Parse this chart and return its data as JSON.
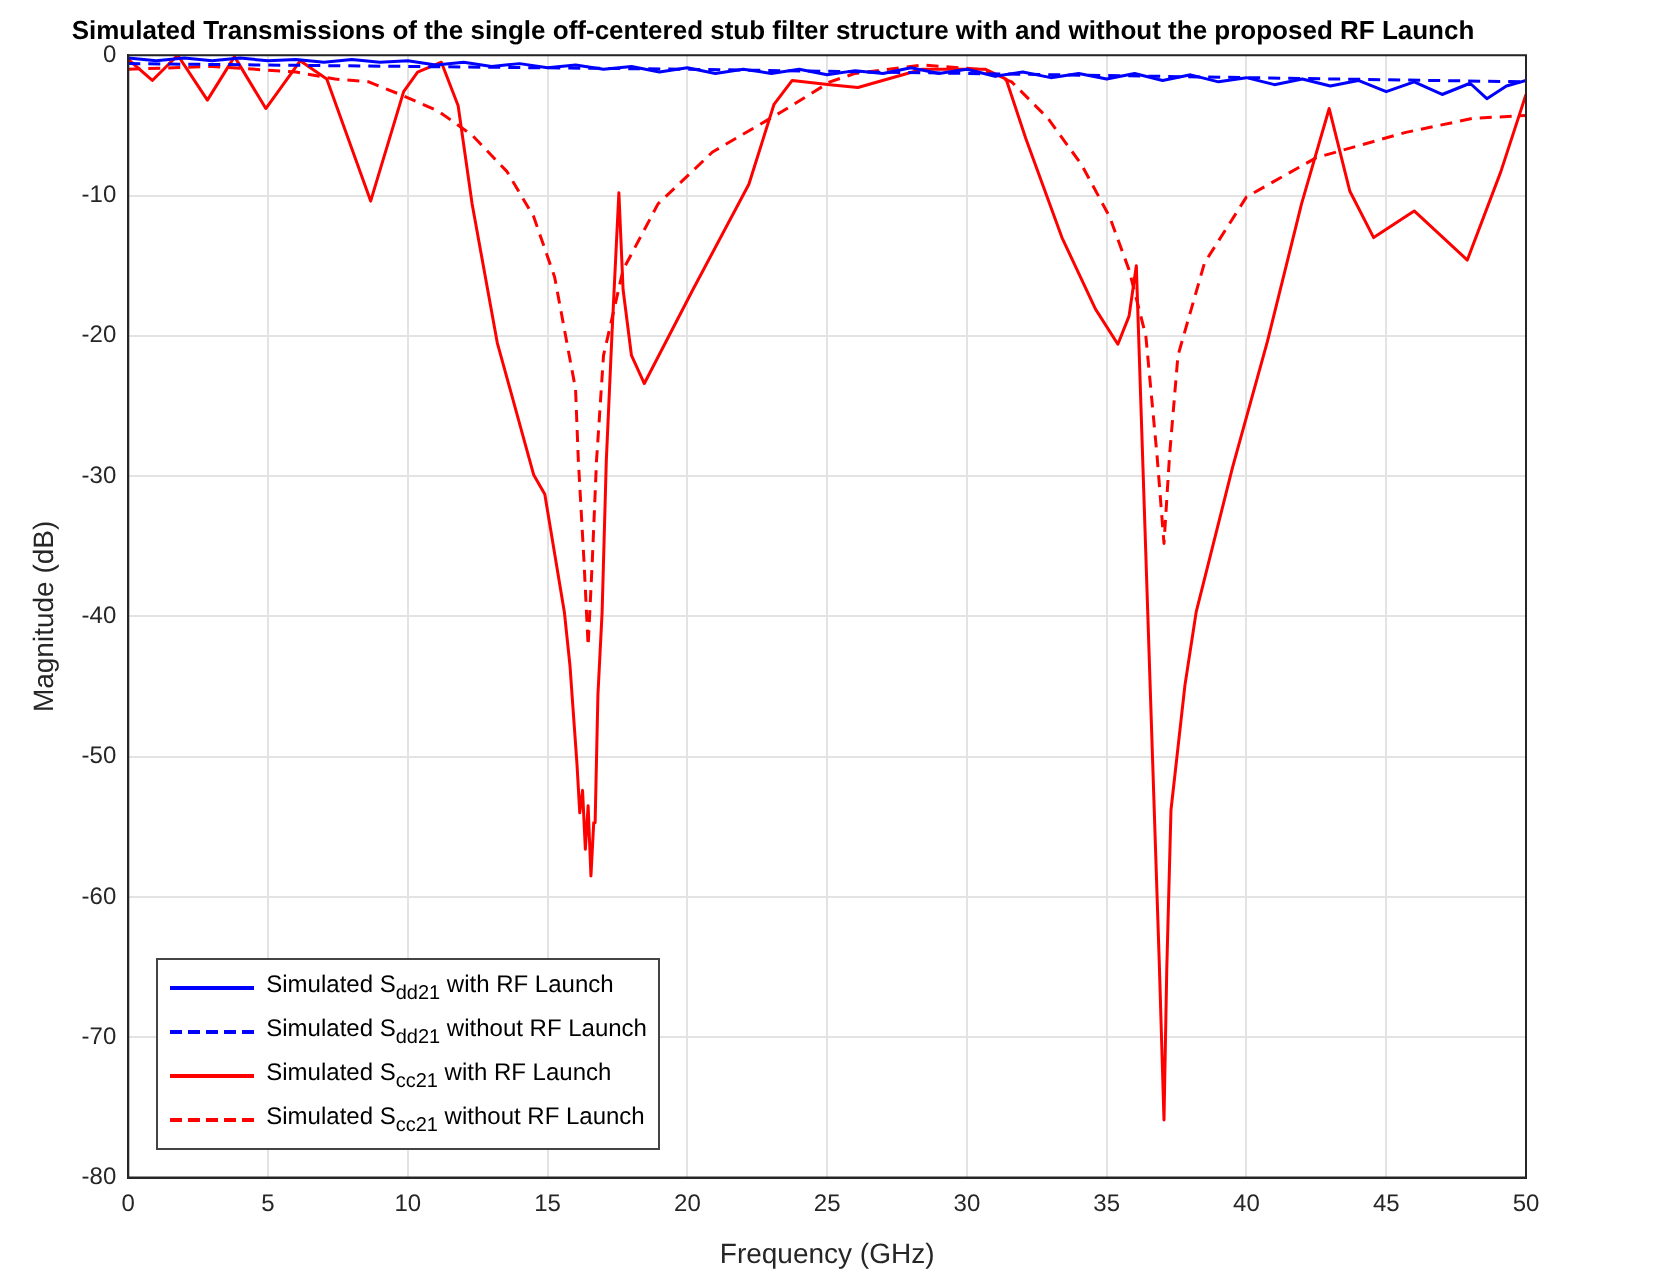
{
  "chart_data": {
    "type": "line",
    "title": "Simulated Transmissions of the single off-centered stub filter structure with and without the proposed RF Launch",
    "xlabel": "Frequency (GHz)",
    "ylabel": "Magnitude (dB)",
    "xlim": [
      0,
      50
    ],
    "ylim": [
      -80,
      0
    ],
    "xticks": [
      0,
      5,
      10,
      15,
      20,
      25,
      30,
      35,
      40,
      45,
      50
    ],
    "yticks": [
      -80,
      -70,
      -60,
      -50,
      -40,
      -30,
      -20,
      -10,
      0
    ],
    "grid": true,
    "legend": "bottom left",
    "marker": "none",
    "series": [
      {
        "name": "Simulated S$_{dd21}$ with RF Launch",
        "color": "#0000ff",
        "line_style": "solid",
        "x": [
          0,
          1,
          2,
          3,
          4,
          5,
          6,
          7,
          8,
          9,
          10,
          11,
          12,
          13,
          14,
          15,
          16,
          17,
          18,
          19,
          20,
          21,
          22,
          23,
          24,
          25,
          26,
          27,
          28,
          29,
          30,
          31,
          32,
          33,
          34,
          35,
          36,
          37,
          38,
          39,
          40,
          41,
          42,
          43,
          44,
          45,
          46,
          47,
          48,
          48.6,
          49.3,
          50
        ],
        "values": [
          -0.2,
          -0.4,
          -0.2,
          -0.4,
          -0.2,
          -0.4,
          -0.3,
          -0.5,
          -0.3,
          -0.5,
          -0.4,
          -0.7,
          -0.5,
          -0.8,
          -0.6,
          -0.9,
          -0.7,
          -1.0,
          -0.8,
          -1.2,
          -0.9,
          -1.3,
          -1.0,
          -1.3,
          -1.0,
          -1.4,
          -1.1,
          -1.3,
          -0.9,
          -1.3,
          -1.0,
          -1.5,
          -1.2,
          -1.6,
          -1.3,
          -1.7,
          -1.3,
          -1.8,
          -1.4,
          -1.9,
          -1.6,
          -2.1,
          -1.7,
          -2.2,
          -1.8,
          -2.6,
          -1.9,
          -2.8,
          -2.0,
          -3.1,
          -2.2,
          -1.8
        ]
      },
      {
        "name": "Simulated S$_{dd21}$ without RF Launch",
        "color": "#0000ff",
        "line_style": "dashed",
        "x": [
          0,
          10,
          20,
          30,
          40,
          50
        ],
        "values": [
          -0.6,
          -0.8,
          -1.0,
          -1.3,
          -1.6,
          -1.9
        ]
      },
      {
        "name": "Simulated S$_{cc21}$ with RF Launch",
        "color": "#ff0000",
        "line_style": "solid",
        "x": [
          0,
          0.86,
          1.77,
          2.83,
          3.8,
          4.92,
          6.15,
          7.1,
          8.67,
          9.85,
          10.35,
          11.2,
          11.8,
          12.3,
          13.2,
          14.5,
          14.9,
          15.6,
          15.8,
          15.9,
          16.05,
          16.15,
          16.25,
          16.35,
          16.45,
          16.55,
          16.65,
          16.7,
          16.8,
          16.95,
          17.1,
          17.3,
          17.55,
          17.7,
          18.0,
          18.46,
          20.2,
          22.2,
          23.1,
          23.75,
          25.1,
          26.1,
          28.4,
          30.65,
          31.4,
          32.1,
          33.4,
          34.6,
          35.4,
          35.8,
          36.06,
          36.88,
          37.05,
          37.15,
          37.3,
          37.8,
          38.2,
          39.5,
          40.75,
          41.97,
          42.96,
          43.7,
          44.55,
          46.0,
          47.9,
          49.1,
          50
        ],
        "values": [
          -0.3,
          -1.8,
          0,
          -3.2,
          -0.1,
          -3.8,
          -0.4,
          -1.7,
          -10.4,
          -2.6,
          -1.2,
          -0.5,
          -3.6,
          -10.6,
          -20.5,
          -29.9,
          -31.3,
          -39.7,
          -43.5,
          -46.3,
          -50.5,
          -54,
          -52.4,
          -56.6,
          -53.5,
          -58.5,
          -54.7,
          -54.7,
          -45.6,
          -39.7,
          -28.9,
          -20,
          -9.8,
          -16.7,
          -21.4,
          -23.4,
          -16.7,
          -9.2,
          -3.5,
          -1.8,
          -2.1,
          -2.3,
          -1.0,
          -1.0,
          -1.7,
          -5.9,
          -13,
          -18.1,
          -20.6,
          -18.6,
          -15.0,
          -64.6,
          -75.9,
          -65.1,
          -53.8,
          -44.9,
          -39.7,
          -29.4,
          -20.4,
          -10.6,
          -3.8,
          -9.7,
          -13,
          -11.1,
          -14.6,
          -8.3,
          -2.8
        ]
      },
      {
        "name": "Simulated S$_{cc21}$ without RF Launch",
        "color": "#ff0000",
        "line_style": "dashed",
        "x": [
          0,
          3,
          6,
          7.4,
          8.6,
          9.85,
          11.1,
          12.3,
          13.55,
          14.5,
          15.25,
          16.0,
          16.1,
          16.3,
          16.45,
          16.6,
          16.75,
          17.0,
          17.7,
          18.95,
          20.9,
          23.4,
          25.1,
          26.0,
          28.4,
          30.4,
          31.6,
          32.9,
          34.1,
          35.1,
          35.8,
          36.4,
          36.8,
          37.05,
          37.25,
          37.55,
          38.5,
          40.0,
          42.5,
          45.7,
          48.1,
          50
        ],
        "values": [
          -1.0,
          -0.8,
          -1.2,
          -1.7,
          -1.9,
          -2.9,
          -4.0,
          -5.7,
          -8.3,
          -11.5,
          -15.8,
          -23.8,
          -28.9,
          -36,
          -42.1,
          -36,
          -28.9,
          -21.4,
          -15.3,
          -10.6,
          -6.9,
          -4.0,
          -1.9,
          -1.3,
          -0.7,
          -1.0,
          -1.9,
          -4.5,
          -7.8,
          -11.5,
          -15.3,
          -20,
          -28.5,
          -34.8,
          -28.5,
          -21.4,
          -14.8,
          -10.1,
          -7.3,
          -5.5,
          -4.5,
          -4.3
        ]
      }
    ]
  }
}
